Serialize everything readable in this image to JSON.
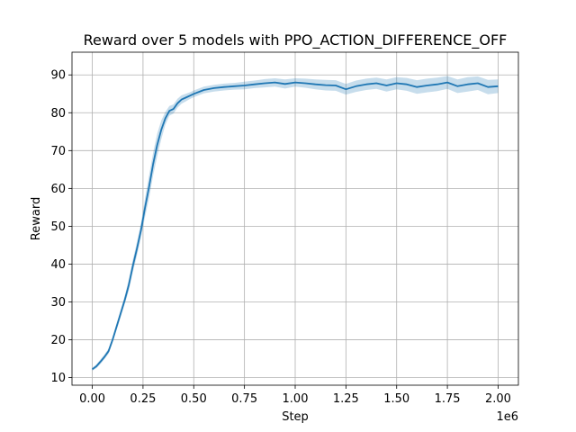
{
  "chart_data": {
    "type": "line",
    "title": "Reward over 5 models with PPO_ACTION_DIFFERENCE_OFF",
    "xlabel": "Step",
    "ylabel": "Reward",
    "x_offset_label": "1e6",
    "xlim": [
      -0.1,
      2.1
    ],
    "ylim": [
      8,
      96
    ],
    "x_ticks": [
      0.0,
      0.25,
      0.5,
      0.75,
      1.0,
      1.25,
      1.5,
      1.75,
      2.0
    ],
    "x_tick_labels": [
      "0.00",
      "0.25",
      "0.50",
      "0.75",
      "1.00",
      "1.25",
      "1.50",
      "1.75",
      "2.00"
    ],
    "y_ticks": [
      10,
      20,
      30,
      40,
      50,
      60,
      70,
      80,
      90
    ],
    "y_tick_labels": [
      "10",
      "20",
      "30",
      "40",
      "50",
      "60",
      "70",
      "80",
      "90"
    ],
    "grid": true,
    "legend": "none",
    "colors": {
      "line": "#1f77b4",
      "band": "#1f77b4"
    },
    "series": [
      {
        "x": [
          0.0,
          0.02,
          0.04,
          0.06,
          0.08,
          0.1,
          0.12,
          0.14,
          0.16,
          0.18,
          0.2,
          0.22,
          0.24,
          0.26,
          0.28,
          0.3,
          0.32,
          0.34,
          0.36,
          0.38,
          0.4,
          0.42,
          0.44,
          0.46,
          0.48,
          0.5,
          0.55,
          0.6,
          0.65,
          0.7,
          0.75,
          0.8,
          0.85,
          0.9,
          0.95,
          1.0,
          1.05,
          1.1,
          1.15,
          1.2,
          1.25,
          1.3,
          1.35,
          1.4,
          1.45,
          1.5,
          1.55,
          1.6,
          1.65,
          1.7,
          1.75,
          1.8,
          1.85,
          1.9,
          1.95,
          2.0
        ],
        "values": [
          12.2,
          13.0,
          14.2,
          15.5,
          17.0,
          20.0,
          23.5,
          27.0,
          30.5,
          34.5,
          39.5,
          44.0,
          49.0,
          55.0,
          60.5,
          66.5,
          71.5,
          75.5,
          78.5,
          80.5,
          81.0,
          82.5,
          83.5,
          84.0,
          84.5,
          85.0,
          86.0,
          86.5,
          86.8,
          87.0,
          87.2,
          87.5,
          87.8,
          88.0,
          87.6,
          88.0,
          87.8,
          87.5,
          87.3,
          87.2,
          86.2,
          87.0,
          87.5,
          87.8,
          87.2,
          87.8,
          87.5,
          86.8,
          87.2,
          87.5,
          88.0,
          87.0,
          87.5,
          87.8,
          86.8,
          87.0
        ],
        "lower": [
          11.8,
          12.5,
          13.6,
          14.9,
          16.3,
          19.2,
          22.6,
          26.0,
          29.4,
          33.0,
          37.8,
          42.2,
          47.0,
          52.5,
          57.5,
          63.5,
          68.5,
          73.0,
          76.8,
          79.2,
          79.8,
          81.3,
          82.4,
          83.0,
          83.6,
          84.1,
          85.1,
          85.6,
          85.9,
          86.1,
          86.2,
          86.5,
          86.7,
          86.9,
          86.4,
          86.9,
          86.6,
          86.2,
          85.9,
          85.8,
          84.8,
          85.5,
          86.0,
          86.3,
          85.6,
          86.2,
          85.8,
          85.0,
          85.4,
          85.7,
          86.3,
          85.2,
          85.6,
          86.0,
          84.9,
          85.2
        ],
        "upper": [
          12.6,
          13.5,
          14.8,
          16.1,
          17.7,
          20.8,
          24.4,
          28.0,
          31.6,
          36.0,
          41.2,
          45.8,
          51.0,
          57.5,
          63.5,
          69.5,
          74.5,
          78.0,
          80.2,
          81.8,
          82.2,
          83.7,
          84.6,
          85.0,
          85.4,
          85.9,
          86.9,
          87.4,
          87.7,
          87.9,
          88.2,
          88.5,
          88.9,
          89.1,
          88.8,
          89.1,
          89.0,
          88.8,
          88.7,
          88.6,
          87.6,
          88.5,
          89.0,
          89.3,
          88.8,
          89.4,
          89.2,
          88.6,
          89.0,
          89.3,
          89.7,
          88.8,
          89.4,
          89.6,
          88.7,
          88.8
        ]
      }
    ]
  }
}
